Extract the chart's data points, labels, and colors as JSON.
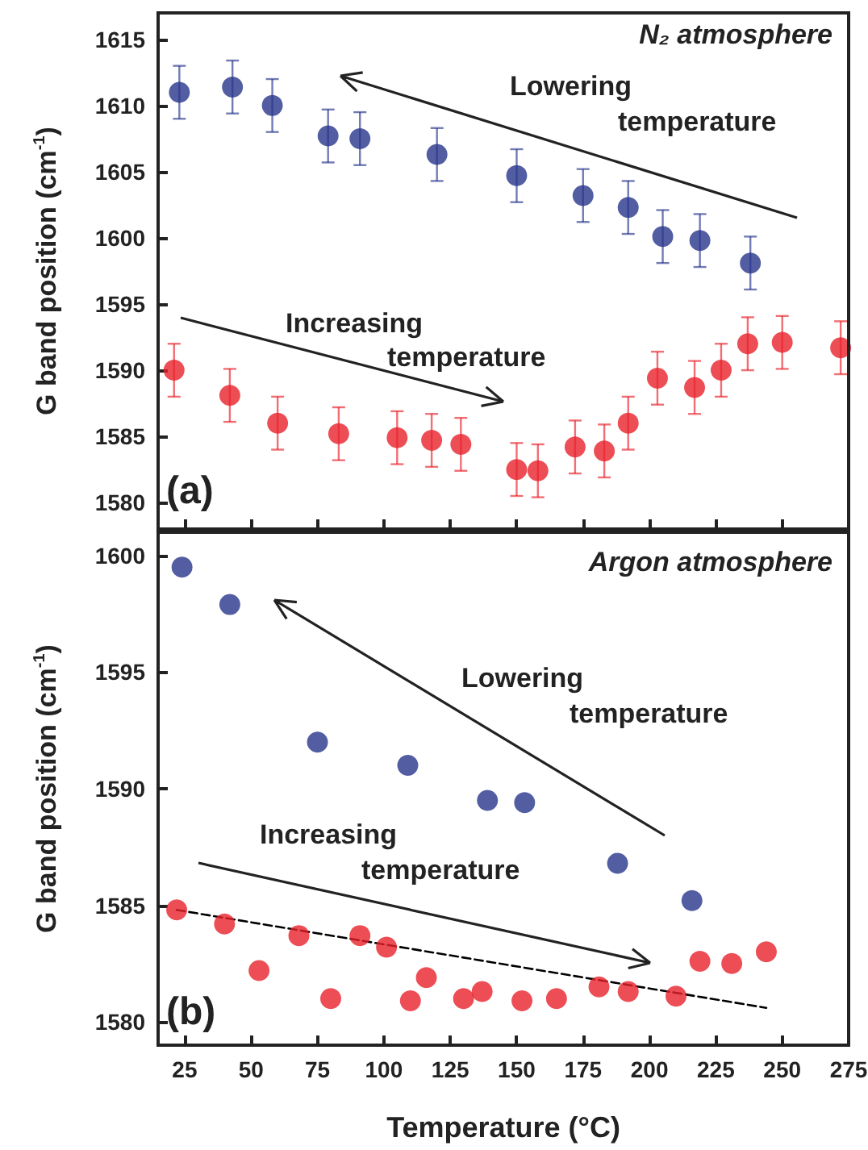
{
  "chart_data": [
    {
      "type": "scatter",
      "ylabel": "G band position (cm$^{-1}$)",
      "xlim": [
        15,
        275
      ],
      "xticks": [
        25,
        50,
        75,
        100,
        125,
        150,
        175,
        200,
        225,
        250,
        275
      ],
      "ylim": [
        1578,
        1617
      ],
      "yticks": [
        1580,
        1585,
        1590,
        1595,
        1600,
        1605,
        1610,
        1615
      ],
      "tick_labels": "y",
      "grid": false,
      "marker": "circle",
      "annotations": [
        "N₂ atmosphere",
        "Lowering temperature",
        "Increasing temperature",
        "(a)"
      ],
      "series": [
        {
          "color": "#27348b",
          "x": [
            23,
            43,
            58,
            79,
            91,
            120,
            150,
            175,
            192,
            205,
            219,
            238
          ],
          "values": [
            1611.0,
            1611.4,
            1610.0,
            1607.7,
            1607.5,
            1606.3,
            1604.7,
            1603.2,
            1602.3,
            1600.1,
            1599.8,
            1598.1
          ],
          "errors": [
            2,
            2,
            2,
            2,
            2,
            2,
            2,
            2,
            2,
            2,
            2,
            2
          ]
        },
        {
          "color": "#e8202a",
          "x": [
            21,
            42,
            60,
            83,
            105,
            118,
            129,
            150,
            158,
            172,
            183,
            192,
            203,
            217,
            227,
            237,
            250,
            272
          ],
          "values": [
            1590.0,
            1588.1,
            1586.0,
            1585.2,
            1584.9,
            1584.7,
            1584.4,
            1582.5,
            1582.4,
            1584.2,
            1583.9,
            1586.0,
            1589.4,
            1588.7,
            1590.0,
            1592.0,
            1592.1,
            1591.7
          ],
          "errors": [
            2,
            2,
            2,
            2,
            2,
            2,
            2,
            2,
            2,
            2,
            2,
            2,
            2,
            2,
            2,
            2,
            2,
            2
          ]
        }
      ]
    },
    {
      "type": "scatter",
      "ylabel": "G band position (cm$^{-1}$)",
      "xlabel": "Temperature (°C)",
      "xlim": [
        15,
        275
      ],
      "xticks": [
        25,
        50,
        75,
        100,
        125,
        150,
        175,
        200,
        225,
        250,
        275
      ],
      "ylim": [
        1579,
        1601
      ],
      "yticks": [
        1580,
        1585,
        1590,
        1595,
        1600
      ],
      "grid": false,
      "marker": "circle",
      "annotations": [
        "Argon atmosphere",
        "Lowering temperature",
        "Increasing temperature",
        "(b)"
      ],
      "series": [
        {
          "color": "#27348b",
          "x": [
            24,
            42,
            75,
            109,
            139,
            153,
            188,
            216
          ],
          "values": [
            1599.5,
            1597.9,
            1592.0,
            1591.0,
            1589.5,
            1589.4,
            1586.8,
            1585.2
          ]
        },
        {
          "color": "#e8202a",
          "x": [
            22,
            40,
            53,
            68,
            80,
            91,
            101,
            110,
            116,
            130,
            137,
            152,
            165,
            181,
            192,
            210,
            219,
            231,
            244
          ],
          "values": [
            1584.8,
            1584.2,
            1582.2,
            1583.7,
            1581.0,
            1583.7,
            1583.2,
            1580.9,
            1581.9,
            1581.0,
            1581.3,
            1580.9,
            1581.0,
            1581.5,
            1581.3,
            1581.1,
            1582.6,
            1582.5,
            1583.0
          ]
        },
        {
          "type": "line",
          "color": "#000000",
          "line_style": "dashed",
          "marker": "none",
          "x": [
            22,
            244
          ],
          "values": [
            1584.8,
            1580.6
          ]
        }
      ]
    }
  ]
}
